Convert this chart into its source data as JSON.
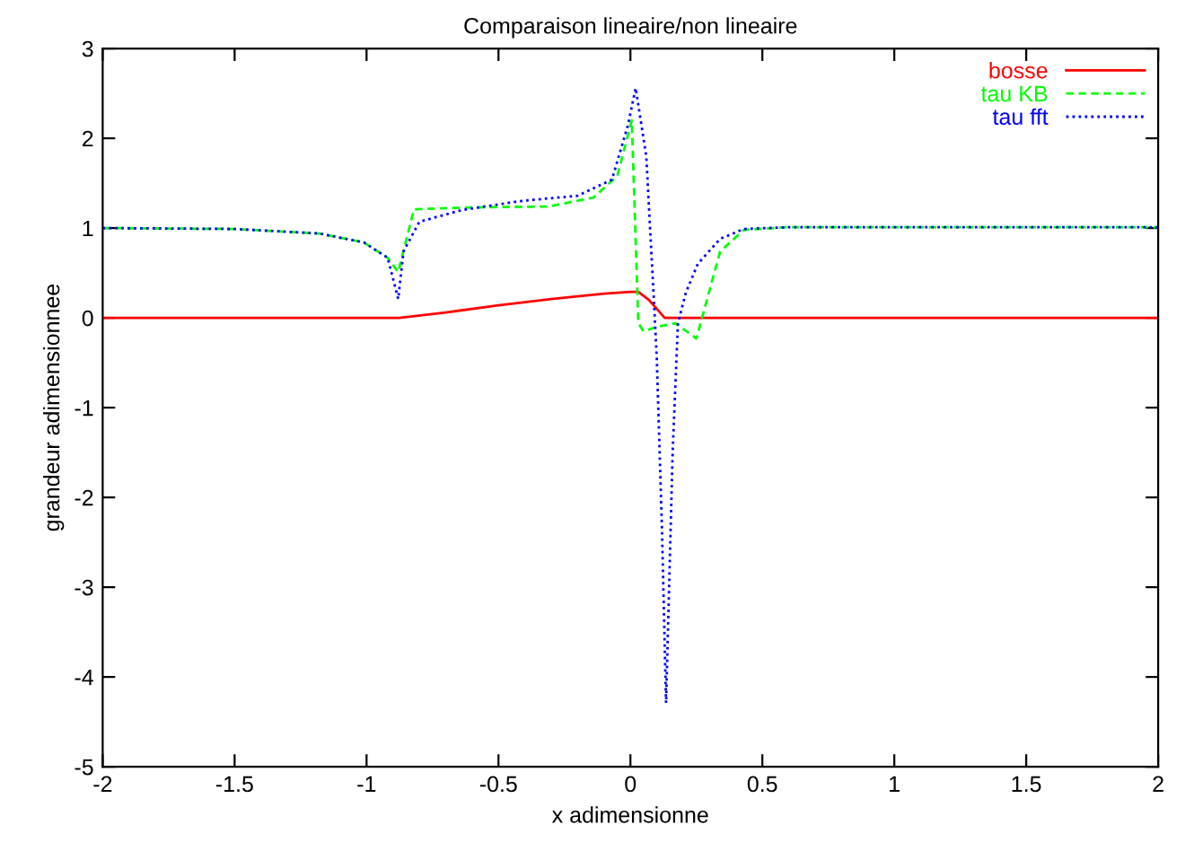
{
  "chart_data": {
    "type": "line",
    "title": "Comparaison lineaire/non lineaire",
    "xlabel": "x adimensionne",
    "ylabel": "grandeur adimensionnee",
    "xlim": [
      -2,
      2
    ],
    "xticks": [
      -2,
      -1.5,
      -1,
      -0.5,
      0,
      0.5,
      1,
      1.5,
      2
    ],
    "ylim": [
      -5,
      3
    ],
    "yticks": [
      -5,
      -4,
      -3,
      -2,
      -1,
      0,
      1,
      2,
      3
    ],
    "grid": false,
    "legend": "top right",
    "marker": "none",
    "series": [
      {
        "name": "bosse",
        "color": "#ff0000",
        "line_style": "solid",
        "x": [
          -2,
          -0.877,
          -0.7,
          -0.5,
          -0.3,
          -0.1,
          0.0,
          0.03,
          0.07,
          0.13,
          2
        ],
        "values": [
          0,
          0,
          0.06,
          0.14,
          0.21,
          0.27,
          0.29,
          0.29,
          0.2,
          0,
          0
        ]
      },
      {
        "name": "tau KB",
        "color": "#00ff00",
        "line_style": "dashed",
        "x": [
          -2,
          -1.5,
          -1.18,
          -1.01,
          -0.92,
          -0.88,
          -0.82,
          -0.6,
          -0.31,
          -0.14,
          -0.05,
          0.0,
          0.005,
          0.03,
          0.05,
          0.1,
          0.17,
          0.25,
          0.34,
          0.43,
          0.6,
          1,
          1.5,
          2
        ],
        "values": [
          1.0,
          0.99,
          0.94,
          0.84,
          0.67,
          0.51,
          1.21,
          1.23,
          1.24,
          1.34,
          1.58,
          2.14,
          2.2,
          -0.06,
          -0.15,
          -0.1,
          -0.06,
          -0.23,
          0.74,
          0.98,
          1.01,
          1.01,
          1.01,
          1.01
        ]
      },
      {
        "name": "tau fft",
        "color": "#0000ff",
        "line_style": "dotted",
        "x": [
          -2,
          -1.5,
          -1.18,
          -1.01,
          -0.92,
          -0.88,
          -0.86,
          -0.8,
          -0.64,
          -0.42,
          -0.2,
          -0.07,
          -0.01,
          0.02,
          0.06,
          0.09,
          0.1,
          0.12,
          0.135,
          0.16,
          0.18,
          0.21,
          0.255,
          0.34,
          0.43,
          0.6,
          1,
          1.5,
          2
        ],
        "values": [
          1.0,
          0.99,
          0.94,
          0.84,
          0.67,
          0.21,
          0.74,
          1.07,
          1.2,
          1.3,
          1.36,
          1.54,
          2.14,
          2.56,
          1.8,
          0.14,
          -0.46,
          -2.4,
          -4.29,
          -1.5,
          -0.06,
          0.28,
          0.6,
          0.88,
          0.99,
          1.01,
          1.01,
          1.01,
          1.01
        ]
      }
    ]
  }
}
